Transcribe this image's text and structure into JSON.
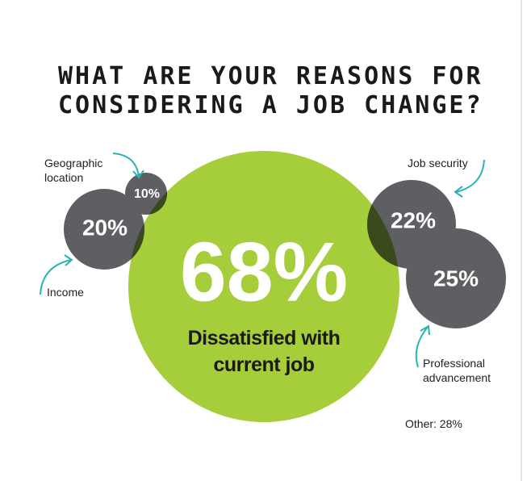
{
  "title_lines": [
    "WHAT ARE YOUR REASONS FOR",
    "CONSIDERING A JOB CHANGE?"
  ],
  "main": {
    "value": "68%",
    "caption_lines": [
      "Dissatisfied with",
      "current job"
    ]
  },
  "bubbles": [
    {
      "value": "20%",
      "label_lines": [
        "Income"
      ]
    },
    {
      "value": "10%",
      "label_lines": [
        "Geographic",
        "location"
      ]
    },
    {
      "value": "22%",
      "label_lines": [
        "Job security"
      ]
    },
    {
      "value": "25%",
      "label_lines": [
        "Professional",
        "advancement"
      ]
    }
  ],
  "other": "Other: 28%"
}
